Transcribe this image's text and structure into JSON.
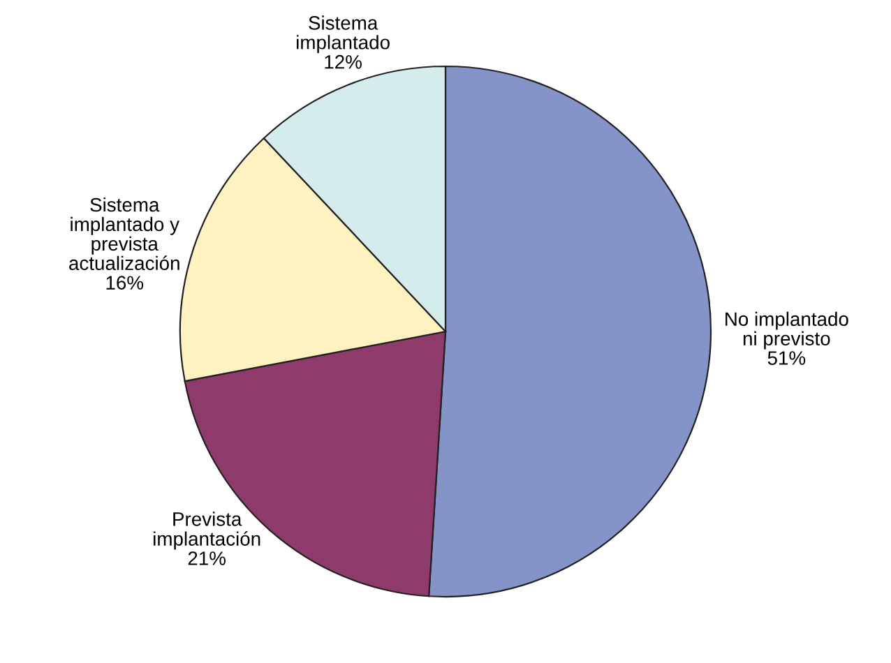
{
  "chart_data": {
    "type": "pie",
    "categories": [
      "No implantado\nni previsto",
      "Prevista\nimplantación",
      "Sistema\nimplantado y\nprevista\nactualización",
      "Sistema\nimplantado"
    ],
    "values": [
      51,
      21,
      16,
      12
    ],
    "value_labels": [
      "51%",
      "21%",
      "16%",
      "12%"
    ],
    "colors": [
      "#8494c8",
      "#8e3a6a",
      "#fdf2c0",
      "#d4ecec"
    ]
  }
}
